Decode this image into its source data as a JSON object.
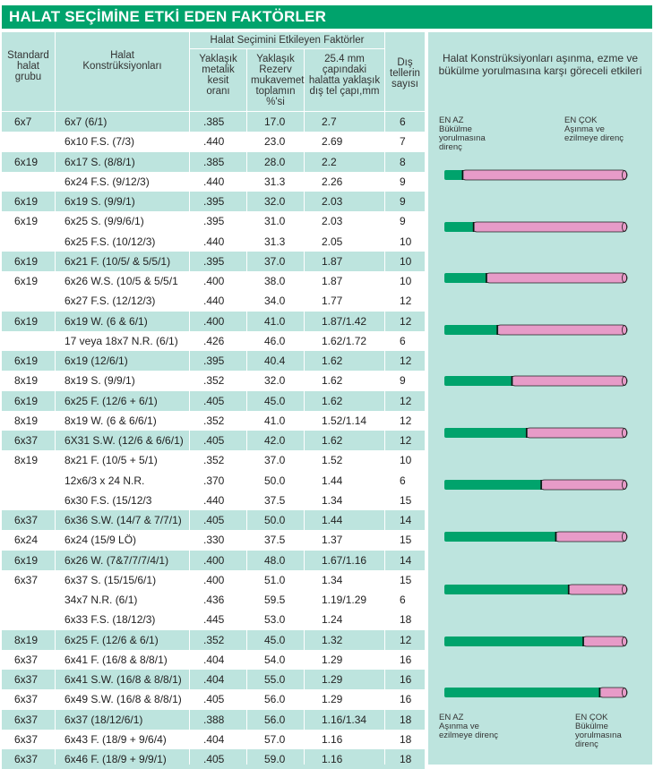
{
  "title": "HALAT SEÇİMİNE ETKİ EDEN FAKTÖRLER",
  "headers": {
    "group": "Standard halat grubu",
    "construction": "Halat Konstrüksiyonları",
    "factors": "Halat Seçimini Etkileyen Faktörler",
    "metal_ratio": "Yaklaşık metalik kesit oranı",
    "reserve": "Yaklaşık Rezerv mukavemet toplamın %'si",
    "wire_diameter": "25.4 mm çapındaki halatta yaklaşık dış tel çapı,mm",
    "outer_wires": "Dış tellerin sayısı",
    "panel": "Halat Konstrüksiyonları aşınma, ezme ve bükülme yorulmasına karşı göreceli etkileri"
  },
  "legend_top": {
    "left_1": "EN AZ",
    "left_2": "Bükülme",
    "left_3": "yorulmasına",
    "left_4": "direnç",
    "right_1": "EN ÇOK",
    "right_2": "Aşınma ve",
    "right_3": "ezilmeye direnç"
  },
  "legend_bottom": {
    "left_1": "EN AZ",
    "left_2": "Aşınma ve",
    "left_3": "ezilmeye direnç",
    "right_1": "EN ÇOK",
    "right_2": "Bükülme",
    "right_3": "yorulmasına",
    "right_4": "direnç"
  },
  "colors": {
    "green": "#00a36c",
    "pink": "#e79bc8",
    "header": "#bde4de"
  },
  "rows": [
    {
      "group": "6x7",
      "construction": "6x7 (6/1)",
      "metal": ".385",
      "reserve": "17.0",
      "wire": "2.7",
      "outer": "6"
    },
    {
      "group": "",
      "construction": "6x10 F.S. (7/3)",
      "metal": ".440",
      "reserve": "23.0",
      "wire": "2.69",
      "outer": "7"
    },
    {
      "group": "6x19",
      "construction": "6x17 S. (8/8/1)",
      "metal": ".385",
      "reserve": "28.0",
      "wire": "2.2",
      "outer": "8"
    },
    {
      "group": "",
      "construction": "6x24 F.S. (9/12/3)",
      "metal": ".440",
      "reserve": "31.3",
      "wire": "2.26",
      "outer": "9"
    },
    {
      "group": "6x19",
      "construction": "6x19 S. (9/9/1)",
      "metal": ".395",
      "reserve": "32.0",
      "wire": "2.03",
      "outer": "9"
    },
    {
      "group": "6x19",
      "construction": "6x25 S. (9/9/6/1)",
      "metal": ".395",
      "reserve": "31.0",
      "wire": "2.03",
      "outer": "9"
    },
    {
      "group": "",
      "construction": "6x25 F.S. (10/12/3)",
      "metal": ".440",
      "reserve": "31.3",
      "wire": "2.05",
      "outer": "10"
    },
    {
      "group": "6x19",
      "construction": "6x21 F. (10/5/ & 5/5/1)",
      "metal": ".395",
      "reserve": "37.0",
      "wire": "1.87",
      "outer": "10"
    },
    {
      "group": "6x19",
      "construction": "6x26 W.S. (10/5 & 5/5/1",
      "metal": ".400",
      "reserve": "38.0",
      "wire": "1.87",
      "outer": "10"
    },
    {
      "group": "",
      "construction": "6x27 F.S. (12/12/3)",
      "metal": ".440",
      "reserve": "34.0",
      "wire": "1.77",
      "outer": "12"
    },
    {
      "group": "6x19",
      "construction": "6x19 W. (6 & 6/1)",
      "metal": ".400",
      "reserve": "41.0",
      "wire": "1.87/1.42",
      "outer": "12"
    },
    {
      "group": "",
      "construction": "17 veya 18x7 N.R. (6/1)",
      "metal": ".426",
      "reserve": "46.0",
      "wire": "1.62/1.72",
      "outer": "6"
    },
    {
      "group": "6x19",
      "construction": "6x19 (12/6/1)",
      "metal": ".395",
      "reserve": "40.4",
      "wire": "1.62",
      "outer": "12"
    },
    {
      "group": "8x19",
      "construction": "8x19 S. (9/9/1)",
      "metal": ".352",
      "reserve": "32.0",
      "wire": "1.62",
      "outer": "9"
    },
    {
      "group": "6x19",
      "construction": "6x25 F. (12/6 + 6/1)",
      "metal": ".405",
      "reserve": "45.0",
      "wire": "1.62",
      "outer": "12"
    },
    {
      "group": "8x19",
      "construction": "8x19 W. (6 & 6/6/1)",
      "metal": ".352",
      "reserve": "41.0",
      "wire": "1.52/1.14",
      "outer": "12"
    },
    {
      "group": "6x37",
      "construction": "6X31 S.W. (12/6 & 6/6/1)",
      "metal": ".405",
      "reserve": "42.0",
      "wire": "1.62",
      "outer": "12"
    },
    {
      "group": "8x19",
      "construction": "8x21 F. (10/5 + 5/1)",
      "metal": ".352",
      "reserve": "37.0",
      "wire": "1.52",
      "outer": "10"
    },
    {
      "group": "",
      "construction": "12x6/3 x 24 N.R.",
      "metal": ".370",
      "reserve": "50.0",
      "wire": "1.44",
      "outer": "6"
    },
    {
      "group": "",
      "construction": "6x30 F.S. (15/12/3",
      "metal": ".440",
      "reserve": "37.5",
      "wire": "1.34",
      "outer": "15"
    },
    {
      "group": "6x37",
      "construction": "6x36 S.W. (14/7 & 7/7/1)",
      "metal": ".405",
      "reserve": "50.0",
      "wire": "1.44",
      "outer": "14"
    },
    {
      "group": "6x24",
      "construction": "6x24 (15/9 LÖ)",
      "metal": ".330",
      "reserve": "37.5",
      "wire": "1.37",
      "outer": "15"
    },
    {
      "group": "6x19",
      "construction": "6x26 W. (7&7/7/7/4/1)",
      "metal": ".400",
      "reserve": "48.0",
      "wire": "1.67/1.16",
      "outer": "14"
    },
    {
      "group": "6x37",
      "construction": "6x37 S. (15/15/6/1)",
      "metal": ".400",
      "reserve": "51.0",
      "wire": "1.34",
      "outer": "15"
    },
    {
      "group": "",
      "construction": "34x7 N.R. (6/1)",
      "metal": ".436",
      "reserve": "59.5",
      "wire": "1.19/1.29",
      "outer": "6"
    },
    {
      "group": "",
      "construction": "6x33 F.S. (18/12/3)",
      "metal": ".445",
      "reserve": "53.0",
      "wire": "1.24",
      "outer": "18"
    },
    {
      "group": "8x19",
      "construction": "6x25 F. (12/6 & 6/1)",
      "metal": ".352",
      "reserve": "45.0",
      "wire": "1.32",
      "outer": "12"
    },
    {
      "group": "6x37",
      "construction": "6x41 F. (16/8 & 8/8/1)",
      "metal": ".404",
      "reserve": "54.0",
      "wire": "1.29",
      "outer": "16"
    },
    {
      "group": "6x37",
      "construction": "6x41 S.W. (16/8 & 8/8/1)",
      "metal": ".404",
      "reserve": "55.0",
      "wire": "1.29",
      "outer": "16"
    },
    {
      "group": "6x37",
      "construction": "6x49 S.W. (16/8 & 8/8/1)",
      "metal": ".405",
      "reserve": "56.0",
      "wire": "1.29",
      "outer": "16"
    },
    {
      "group": "6x37",
      "construction": "6x37 (18/12/6/1)",
      "metal": ".388",
      "reserve": "56.0",
      "wire": "1.16/1.34",
      "outer": "18"
    },
    {
      "group": "6x37",
      "construction": "6x43 F. (18/9 + 9/6/4)",
      "metal": ".404",
      "reserve": "57.0",
      "wire": "1.16",
      "outer": "18"
    },
    {
      "group": "6x37",
      "construction": "6x46 F. (18/9 + 9/9/1)",
      "metal": ".405",
      "reserve": "59.0",
      "wire": "1.16",
      "outer": "18"
    }
  ],
  "shaded_rows": [
    0,
    2,
    4,
    7,
    10,
    12,
    14,
    16,
    20,
    22,
    26,
    28,
    30,
    32
  ],
  "bars": [
    0.09,
    0.15,
    0.22,
    0.28,
    0.36,
    0.44,
    0.52,
    0.6,
    0.67,
    0.75,
    0.84
  ]
}
